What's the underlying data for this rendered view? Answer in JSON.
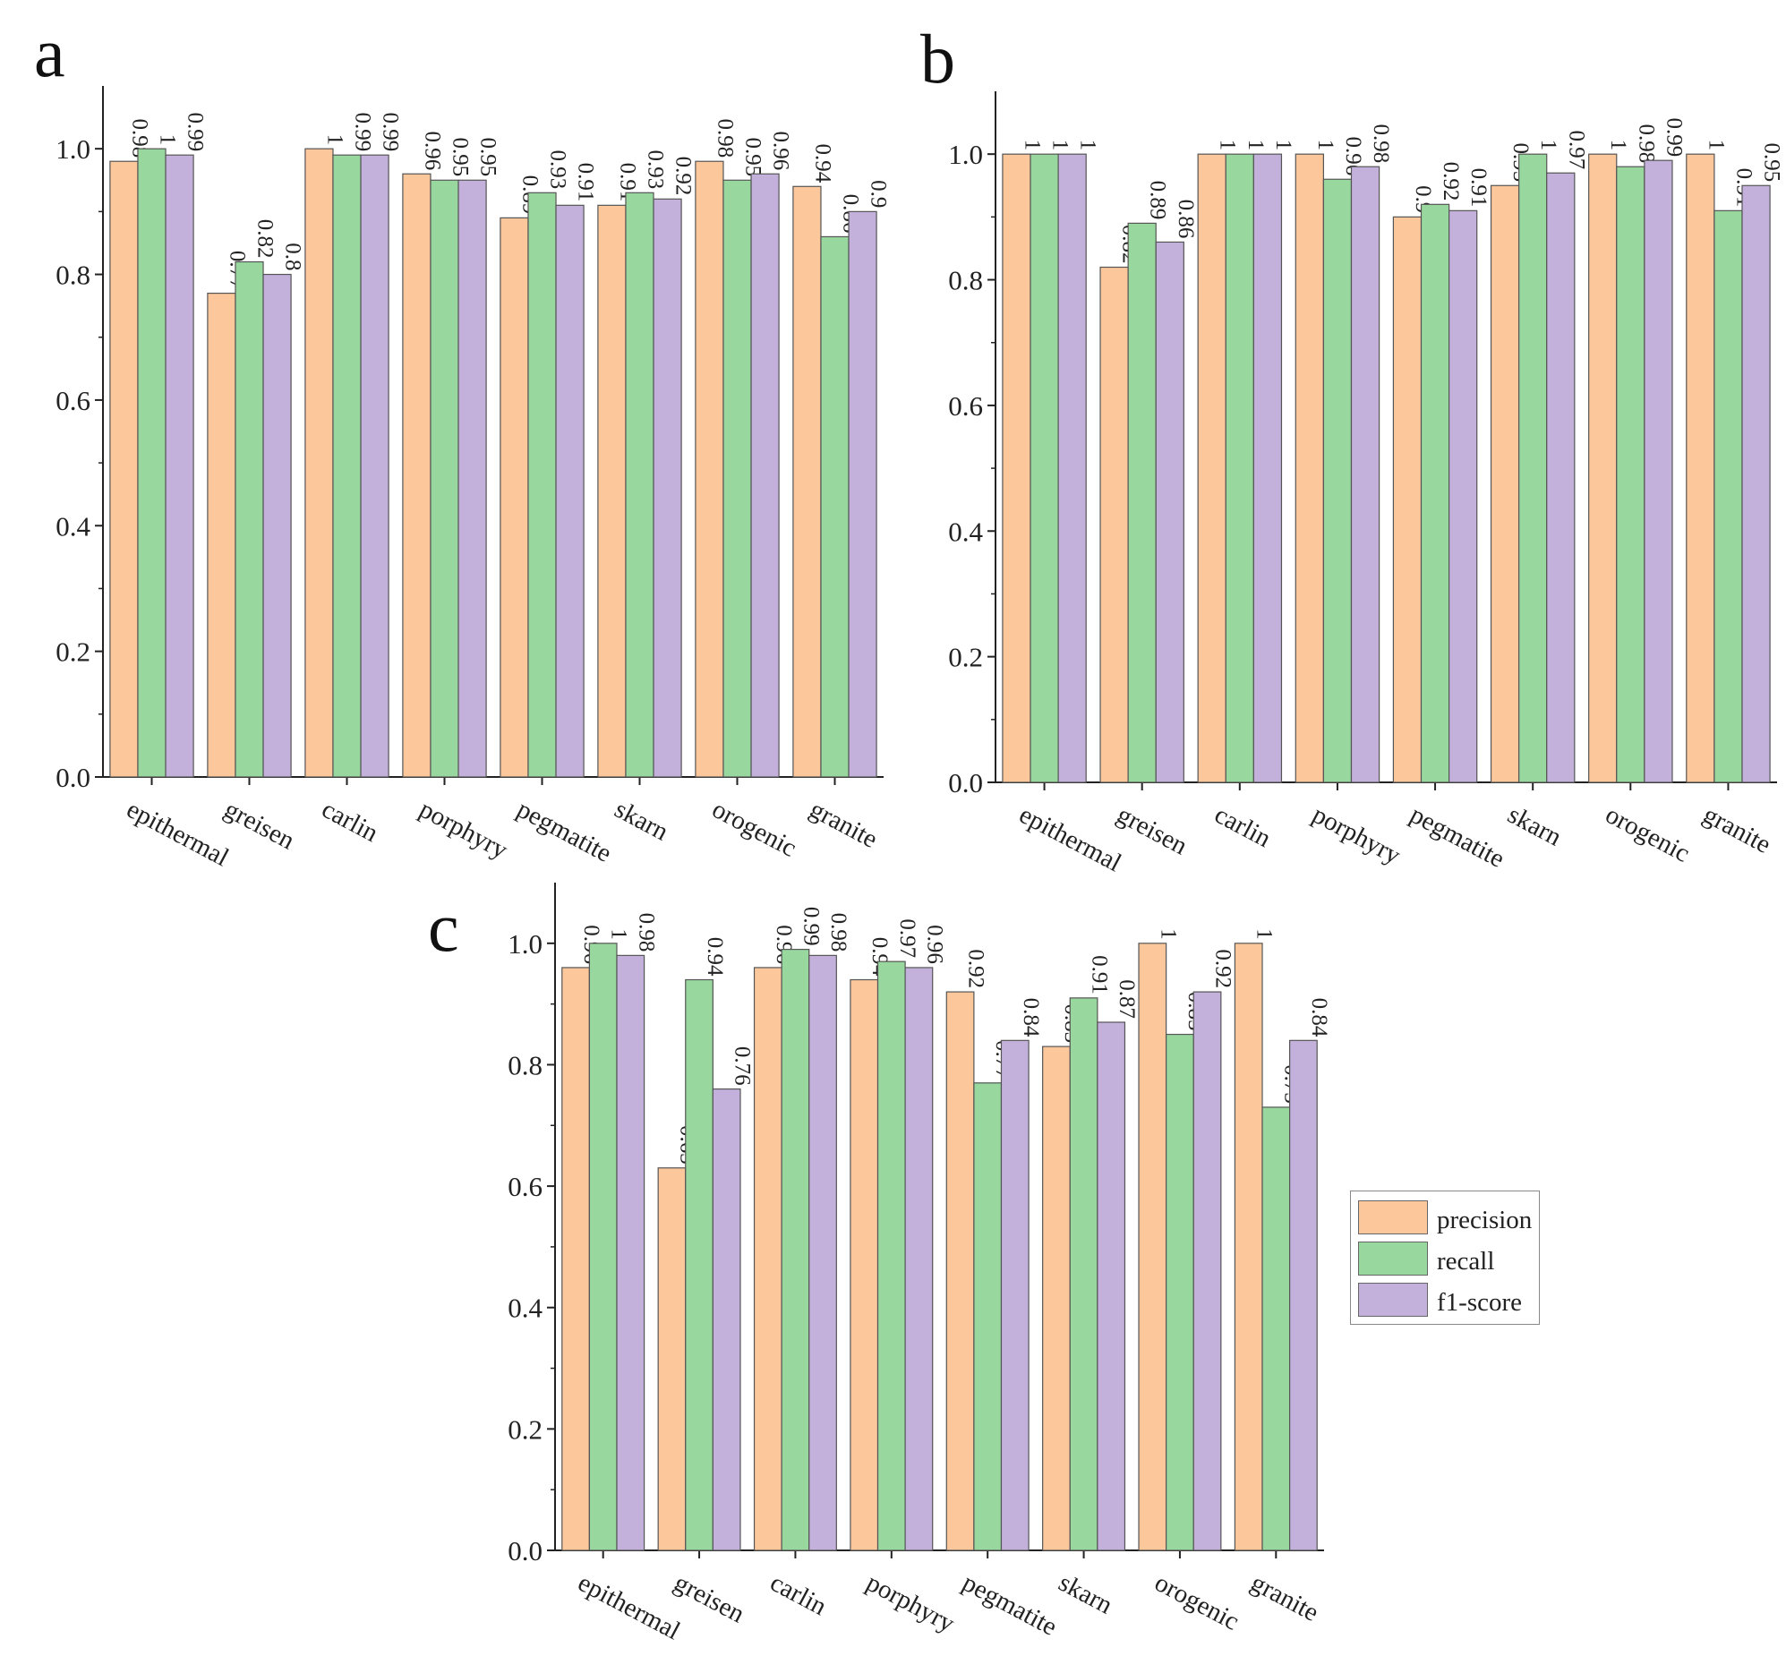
{
  "chart_data": [
    {
      "type": "bar",
      "panel_label": "a",
      "categories": [
        "epithermal",
        "greisen",
        "carlin",
        "porphyry",
        "pegmatite",
        "skarn",
        "orogenic",
        "granite"
      ],
      "series": [
        {
          "name": "precision",
          "values": [
            0.98,
            0.77,
            1,
            0.96,
            0.89,
            0.91,
            0.98,
            0.94
          ],
          "labels": [
            "0.98",
            "0.77",
            "1",
            "0.96",
            "0.89",
            "0.91",
            "0.98",
            "0.94"
          ]
        },
        {
          "name": "recall",
          "values": [
            1,
            0.82,
            0.99,
            0.95,
            0.93,
            0.93,
            0.95,
            0.86
          ],
          "labels": [
            "1",
            "0.82",
            "0.99",
            "0.95",
            "0.93",
            "0.93",
            "0.95",
            "0.86"
          ]
        },
        {
          "name": "f1-score",
          "values": [
            0.99,
            0.8,
            0.99,
            0.95,
            0.91,
            0.92,
            0.96,
            0.9
          ],
          "labels": [
            "0.99",
            "0.8",
            "0.99",
            "0.95",
            "0.91",
            "0.92",
            "0.96",
            "0.9"
          ]
        }
      ],
      "ylim": [
        0,
        1.1
      ],
      "yticks": [
        "0.0",
        "0.2",
        "0.4",
        "0.6",
        "0.8",
        "1.0"
      ]
    },
    {
      "type": "bar",
      "panel_label": "b",
      "categories": [
        "epithermal",
        "greisen",
        "carlin",
        "porphyry",
        "pegmatite",
        "skarn",
        "orogenic",
        "granite"
      ],
      "series": [
        {
          "name": "precision",
          "values": [
            1,
            0.82,
            1,
            1,
            0.9,
            0.95,
            1,
            1
          ],
          "labels": [
            "1",
            "0.82",
            "1",
            "1",
            "0.9",
            "0.95",
            "1",
            "1"
          ]
        },
        {
          "name": "recall",
          "values": [
            1,
            0.89,
            1,
            0.96,
            0.92,
            1,
            0.98,
            0.91
          ],
          "labels": [
            "1",
            "0.89",
            "1",
            "0.96",
            "0.92",
            "1",
            "0.98",
            "0.91"
          ]
        },
        {
          "name": "f1-score",
          "values": [
            1,
            0.86,
            1,
            0.98,
            0.91,
            0.97,
            0.99,
            0.95
          ],
          "labels": [
            "1",
            "0.86",
            "1",
            "0.98",
            "0.91",
            "0.97",
            "0.99",
            "0.95"
          ]
        }
      ],
      "ylim": [
        0,
        1.1
      ],
      "yticks": [
        "0.0",
        "0.2",
        "0.4",
        "0.6",
        "0.8",
        "1.0"
      ]
    },
    {
      "type": "bar",
      "panel_label": "c",
      "categories": [
        "epithermal",
        "greisen",
        "carlin",
        "porphyry",
        "pegmatite",
        "skarn",
        "orogenic",
        "granite"
      ],
      "series": [
        {
          "name": "precision",
          "values": [
            0.96,
            0.63,
            0.96,
            0.94,
            0.92,
            0.83,
            1,
            1
          ],
          "labels": [
            "0.96",
            "0.63",
            "0.96",
            "0.94",
            "0.92",
            "0.83",
            "1",
            "1"
          ]
        },
        {
          "name": "recall",
          "values": [
            1,
            0.94,
            0.99,
            0.97,
            0.77,
            0.91,
            0.85,
            0.73
          ],
          "labels": [
            "1",
            "0.94",
            "0.99",
            "0.97",
            "0.77",
            "0.91",
            "0.85",
            "0.73"
          ]
        },
        {
          "name": "f1-score",
          "values": [
            0.98,
            0.76,
            0.98,
            0.96,
            0.84,
            0.87,
            0.92,
            0.84
          ],
          "labels": [
            "0.98",
            "0.76",
            "0.98",
            "0.96",
            "0.84",
            "0.87",
            "0.92",
            "0.84"
          ]
        }
      ],
      "ylim": [
        0,
        1.1
      ],
      "yticks": [
        "0.0",
        "0.2",
        "0.4",
        "0.6",
        "0.8",
        "1.0"
      ]
    }
  ],
  "legend": {
    "items": [
      {
        "label": "precision",
        "color": "#fcc89b"
      },
      {
        "label": "recall",
        "color": "#98d89e"
      },
      {
        "label": "f1-score",
        "color": "#c3b1dc"
      }
    ]
  },
  "colors": {
    "precision": "#fcc89b",
    "recall": "#98d89e",
    "f1-score": "#c3b1dc",
    "outline": "#555555",
    "axis": "#222222"
  }
}
